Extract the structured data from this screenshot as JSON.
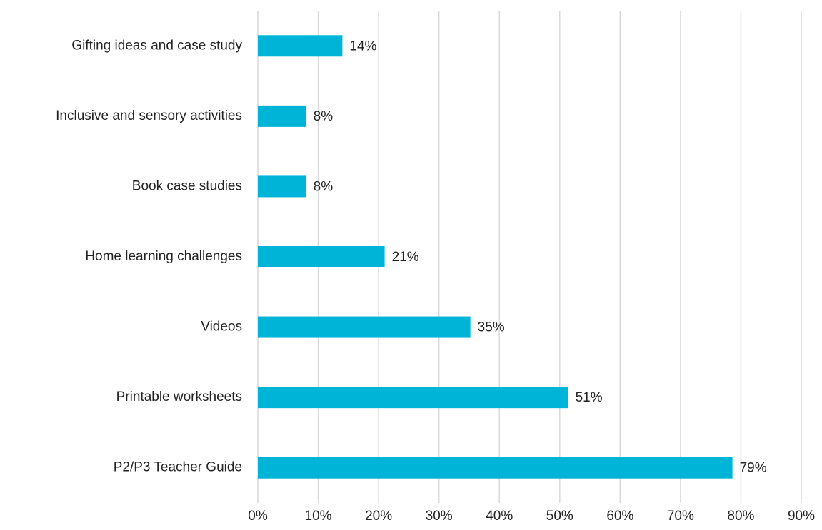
{
  "chart_data": {
    "type": "hbar",
    "categories": [
      "Gifting ideas and case study",
      "Inclusive and sensory activities",
      "Book case studies",
      "Home learning challenges",
      "Videos",
      "Printable worksheets",
      "P2/P3 Teacher Guide"
    ],
    "values": [
      14,
      8,
      8,
      21,
      35.2,
      51.4,
      78.6
    ],
    "value_labels": [
      "14%",
      "8%",
      "8%",
      "21%",
      "35%",
      "51%",
      "79%"
    ],
    "color": "#00b4d8",
    "xlim": [
      0,
      90
    ],
    "xticks": [
      {
        "value": 0,
        "label": "0%"
      },
      {
        "value": 10,
        "label": "10%"
      },
      {
        "value": 20,
        "label": "20%"
      },
      {
        "value": 30,
        "label": "30%"
      },
      {
        "value": 40,
        "label": "40%"
      },
      {
        "value": 50,
        "label": "50%"
      },
      {
        "value": 60,
        "label": "60%"
      },
      {
        "value": 70,
        "label": "70%"
      },
      {
        "value": 80,
        "label": "80%"
      },
      {
        "value": 90,
        "label": "90%"
      }
    ],
    "grid": true
  }
}
